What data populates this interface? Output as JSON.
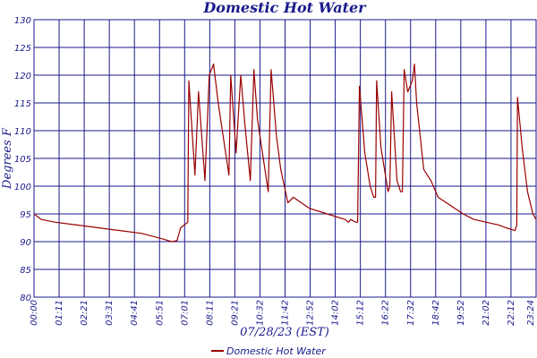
{
  "chart_data": {
    "type": "line",
    "title": "Domestic Hot Water",
    "xlabel": "07/28/23 (EST)",
    "ylabel": "Degrees F",
    "ylim": [
      80,
      130
    ],
    "yticks": [
      80,
      85,
      90,
      95,
      100,
      105,
      110,
      115,
      120,
      125,
      130
    ],
    "ytick_labels": [
      "80",
      "85",
      "90",
      "95",
      "100",
      "105",
      "110",
      "115",
      "120",
      "125",
      "130"
    ],
    "xtick_labels": [
      "00:00",
      "01:11",
      "02:21",
      "03:31",
      "04:41",
      "05:51",
      "07:01",
      "08:11",
      "09:21",
      "10:32",
      "11:42",
      "12:52",
      "14:02",
      "15:12",
      "16:22",
      "17:32",
      "18:42",
      "19:52",
      "21:02",
      "22:12",
      "23:24"
    ],
    "xlim": [
      0,
      1404
    ],
    "grid": true,
    "legend": "bottom-center",
    "series": [
      {
        "name": "Domestic Hot Water",
        "color": "#990000",
        "points": [
          [
            0,
            95
          ],
          [
            20,
            94
          ],
          [
            60,
            93.5
          ],
          [
            120,
            93
          ],
          [
            180,
            92.5
          ],
          [
            240,
            92
          ],
          [
            300,
            91.5
          ],
          [
            360,
            90.5
          ],
          [
            385,
            90
          ],
          [
            400,
            90.2
          ],
          [
            410,
            92.5
          ],
          [
            430,
            93.5
          ],
          [
            433,
            119
          ],
          [
            450,
            102
          ],
          [
            460,
            117
          ],
          [
            478,
            101
          ],
          [
            490,
            120
          ],
          [
            502,
            122
          ],
          [
            515,
            115
          ],
          [
            545,
            102
          ],
          [
            550,
            120
          ],
          [
            565,
            106
          ],
          [
            578,
            120
          ],
          [
            590,
            111
          ],
          [
            605,
            101
          ],
          [
            615,
            121
          ],
          [
            625,
            112
          ],
          [
            655,
            99
          ],
          [
            663,
            121
          ],
          [
            678,
            109
          ],
          [
            690,
            103
          ],
          [
            710,
            97
          ],
          [
            725,
            98
          ],
          [
            770,
            96
          ],
          [
            820,
            95
          ],
          [
            870,
            94
          ],
          [
            880,
            93.5
          ],
          [
            885,
            94
          ],
          [
            900,
            93.5
          ],
          [
            905,
            93.5
          ],
          [
            910,
            118
          ],
          [
            925,
            106
          ],
          [
            940,
            100
          ],
          [
            950,
            98
          ],
          [
            955,
            98
          ],
          [
            958,
            119
          ],
          [
            970,
            107
          ],
          [
            990,
            99
          ],
          [
            995,
            100
          ],
          [
            1000,
            117
          ],
          [
            1015,
            101
          ],
          [
            1025,
            99
          ],
          [
            1030,
            99
          ],
          [
            1035,
            121
          ],
          [
            1045,
            117
          ],
          [
            1058,
            119
          ],
          [
            1064,
            122
          ],
          [
            1070,
            115
          ],
          [
            1090,
            103
          ],
          [
            1110,
            101
          ],
          [
            1130,
            98
          ],
          [
            1200,
            95
          ],
          [
            1230,
            94
          ],
          [
            1300,
            93
          ],
          [
            1320,
            92.5
          ],
          [
            1345,
            92
          ],
          [
            1350,
            93
          ],
          [
            1352,
            116
          ],
          [
            1365,
            107
          ],
          [
            1380,
            99
          ],
          [
            1395,
            95
          ],
          [
            1404,
            94
          ]
        ]
      }
    ]
  }
}
